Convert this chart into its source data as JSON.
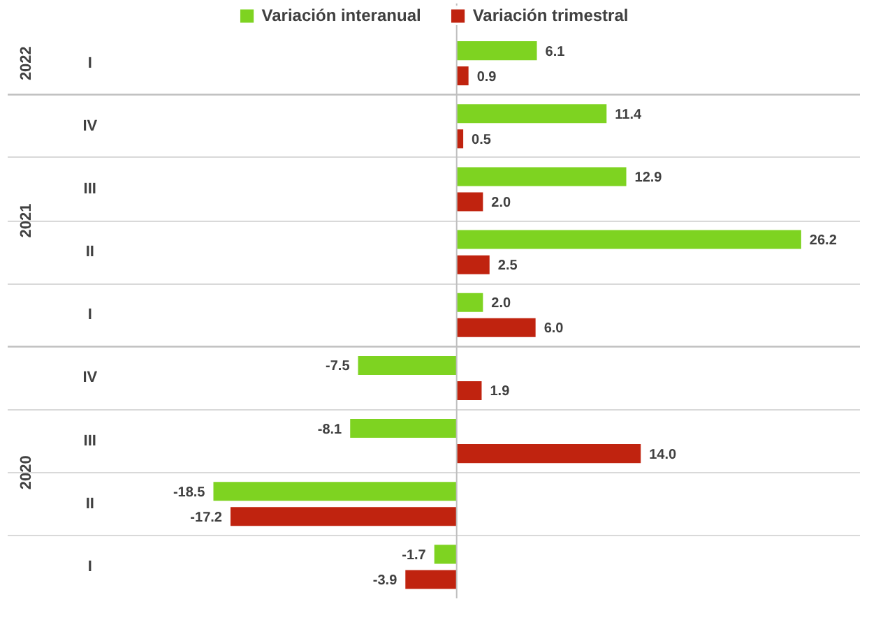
{
  "chart_data": {
    "type": "bar",
    "orientation": "horizontal",
    "categories": [
      "I",
      "IV",
      "III",
      "II",
      "I",
      "IV",
      "III",
      "II",
      "I"
    ],
    "series": [
      {
        "name": "Variación interanual",
        "color": "#7ed321",
        "values": [
          6.1,
          11.4,
          12.9,
          26.2,
          2.0,
          -7.5,
          -8.1,
          -18.5,
          -1.7
        ],
        "value_labels": [
          "6.1",
          "11.4",
          "12.9",
          "26.2",
          "2.0",
          "-7.5",
          "-8.1",
          "-18.5",
          "-1.7"
        ]
      },
      {
        "name": "Variación trimestral",
        "color": "#c0230f",
        "values": [
          0.9,
          0.5,
          2.0,
          2.5,
          6.0,
          1.9,
          14.0,
          -17.2,
          -3.9
        ],
        "value_labels": [
          "0.9",
          "0.5",
          "2.0",
          "2.5",
          "6.0",
          "1.9",
          "14.0",
          "-17.2",
          "-3.9"
        ]
      }
    ],
    "annotations": [
      "2022",
      "2021",
      "2020"
    ],
    "legend": "top",
    "grid": "y"
  }
}
